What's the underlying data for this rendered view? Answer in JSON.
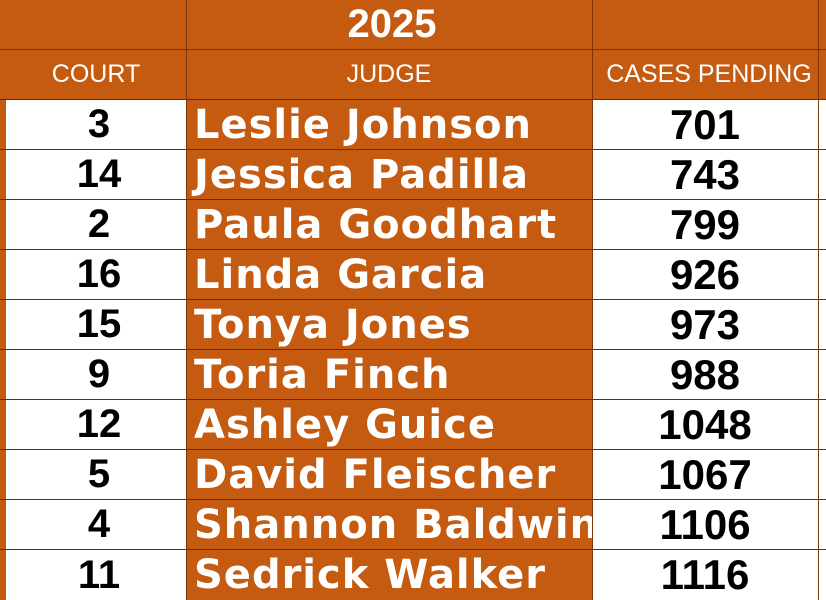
{
  "table": {
    "year": "2025",
    "headers": {
      "court": "COURT",
      "judge": "JUDGE",
      "cases_pending": "CASES PENDING"
    },
    "rows": [
      {
        "court": "3",
        "judge": "Leslie Johnson",
        "cases": "701"
      },
      {
        "court": "14",
        "judge": "Jessica Padilla",
        "cases": "743"
      },
      {
        "court": "2",
        "judge": "Paula Goodhart",
        "cases": "799"
      },
      {
        "court": "16",
        "judge": "Linda Garcia",
        "cases": "926"
      },
      {
        "court": "15",
        "judge": "Tonya Jones",
        "cases": "973"
      },
      {
        "court": "9",
        "judge": "Toria Finch",
        "cases": "988"
      },
      {
        "court": "12",
        "judge": "Ashley Guice",
        "cases": "1048"
      },
      {
        "court": "5",
        "judge": "David Fleischer",
        "cases": "1067"
      },
      {
        "court": "4",
        "judge": "Shannon Baldwin",
        "cases": "1106"
      },
      {
        "court": "11",
        "judge": "Sedrick Walker",
        "cases": "1116"
      }
    ]
  },
  "colors": {
    "accent": "#c55a11",
    "cell_white": "#ffffff",
    "text_dark": "#000000"
  }
}
